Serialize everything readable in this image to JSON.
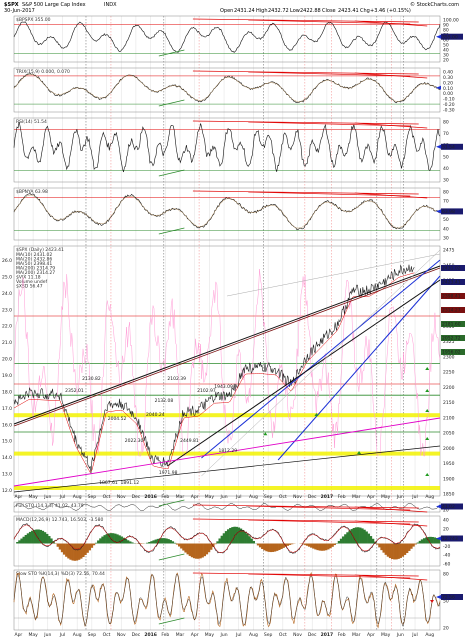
{
  "header": {
    "symbol": "$SPX",
    "name": "S&P 500 Large Cap Index",
    "exchange": "INDX",
    "date": "30-Jun-2017",
    "open_label": "Open",
    "open": "2431.24",
    "high_label": "High",
    "high": "2432.72",
    "low_label": "Low",
    "low": "2422.88",
    "close_label": "Close",
    "close": "2423.41",
    "volume_label": "Volume",
    "volume": "",
    "chg_label": "Chg",
    "chg": "+3.46 (+0.15%)",
    "source": "© StockCharts.com"
  },
  "colors": {
    "price_line": "#222222",
    "trend_red": "#e00000",
    "trend_blue": "#1a2fd6",
    "trend_black": "#111111",
    "trend_magenta": "#e000c8",
    "band_yellow": "#f2f200",
    "band_green": "#2b8a2b",
    "arrow_green": "#1f9a1f",
    "arrow_red": "#d81010",
    "bar_green": "#2e7d32",
    "bar_brown": "#b5651d",
    "stoch_line": "#b5651d",
    "pink": "#ff9ad5"
  },
  "panels": [
    {
      "id": "bpspx",
      "legend": "$BPSPX 355.00",
      "scale": [
        "100.00",
        "90",
        "80",
        "70",
        "60",
        "50",
        "40",
        "30",
        "20"
      ],
      "value_tag": "355.00"
    },
    {
      "id": "trix",
      "legend": "TRIX(15,9) 0.000, 0.070",
      "scale": [
        "0.40",
        "0.30",
        "0.20",
        "0.10",
        "0.00",
        "-0.10",
        "-0.20",
        "-0.30"
      ],
      "value_tag": ""
    },
    {
      "id": "rsi",
      "legend": "RSI(14) 51.54",
      "scale": [
        "80",
        "70",
        "60",
        "50",
        "40",
        "30"
      ],
      "value_tag": "51.54"
    },
    {
      "id": "rsi_smooth",
      "legend": "$BPNYA 63.98",
      "scale": [
        "80",
        "70",
        "60",
        "50",
        "40",
        "30"
      ],
      "value_tag": "63.98"
    },
    {
      "id": "main",
      "legend_title": "$SPX (Daily) 2423.41",
      "legend_items": [
        "MA(10) 2431.02",
        "MA(20) 2432.86",
        "MA(50) 2398.41",
        "MA(200) 2314.79",
        "MA(200) 2314.27",
        "$VIX 11.18",
        "Volume undef",
        "$XSD 56.47"
      ],
      "scale": [
        "2475",
        "2450",
        "2425",
        "2400",
        "2375",
        "2350",
        "2325",
        "2300",
        "2250",
        "2200",
        "2150",
        "2100",
        "2050",
        "2000",
        "1950",
        "1900",
        "1850"
      ],
      "value_tags": [
        "2431.02",
        "2423.41",
        "2398.41",
        "2314.27",
        "2181.60",
        "2052.72",
        "1956.02"
      ],
      "price_annotations": [
        "2352.01",
        "2130.82",
        "2004.52",
        "2022.30",
        "2040.24",
        "2132.08",
        "2102.39",
        "2102.97",
        "1943.09",
        "1812.29",
        "1867.61",
        "1891.12",
        "1971.98",
        "2449.81"
      ],
      "left_scale": [
        "26.0",
        "25.0",
        "24.0",
        "23.0",
        "22.0",
        "21.0",
        "20.0",
        "19.0",
        "18.0",
        "17.0",
        "16.0",
        "15.0",
        "14.0",
        "13.0",
        "12.0"
      ]
    },
    {
      "id": "stoch_full",
      "legend": "Full STO (14,3,3) 41.02, 43.79",
      "scale": [
        "80",
        "50",
        "20"
      ],
      "value_tag": "41.02"
    },
    {
      "id": "macd",
      "legend": "MACD(12,26,9) 12.743, 16.503, -3.580",
      "scale": [
        "40",
        "20",
        "0",
        "-20",
        "-40",
        "-60"
      ],
      "value_tag": "12.743"
    },
    {
      "id": "slow_sto",
      "legend": "Slow STO %K(14,3) %D(3) 72.56, 70.44",
      "scale": [
        "80",
        "50",
        "20"
      ],
      "value_tag": "72.56"
    }
  ],
  "x_axis": {
    "labels": [
      "Apr",
      "May",
      "Jun",
      "Jul",
      "Aug",
      "Sep",
      "Oct",
      "Nov",
      "Dec",
      "2016",
      "Feb",
      "Mar",
      "Apr",
      "May",
      "Jun",
      "Jul",
      "Aug",
      "Sep",
      "Oct",
      "Nov",
      "Dec",
      "2017",
      "Feb",
      "Mar",
      "Apr",
      "May",
      "Jun",
      "Jul",
      "Aug"
    ]
  },
  "chart_data": {
    "type": "line",
    "title": "$SPX S&P 500 Large Cap Index INDX",
    "x": [
      "Apr 2015",
      "May",
      "Jun",
      "Jul",
      "Aug",
      "Sep",
      "Oct",
      "Nov",
      "Dec",
      "Jan 2016",
      "Feb",
      "Mar",
      "Apr",
      "May",
      "Jun",
      "Jul",
      "Aug",
      "Sep",
      "Oct",
      "Nov",
      "Dec",
      "Jan 2017",
      "Feb",
      "Mar",
      "Apr",
      "May",
      "Jun"
    ],
    "series": [
      {
        "name": "$SPX",
        "values": [
          2085,
          2107,
          2105,
          2103,
          1990,
          1920,
          2075,
          2080,
          2044,
          1940,
          1932,
          2060,
          2065,
          2097,
          2099,
          2170,
          2171,
          2168,
          2126,
          2199,
          2239,
          2279,
          2364,
          2363,
          2384,
          2412,
          2423
        ]
      }
    ],
    "ylim": [
      1850,
      2475
    ],
    "ylabel": "",
    "xlabel": ""
  }
}
